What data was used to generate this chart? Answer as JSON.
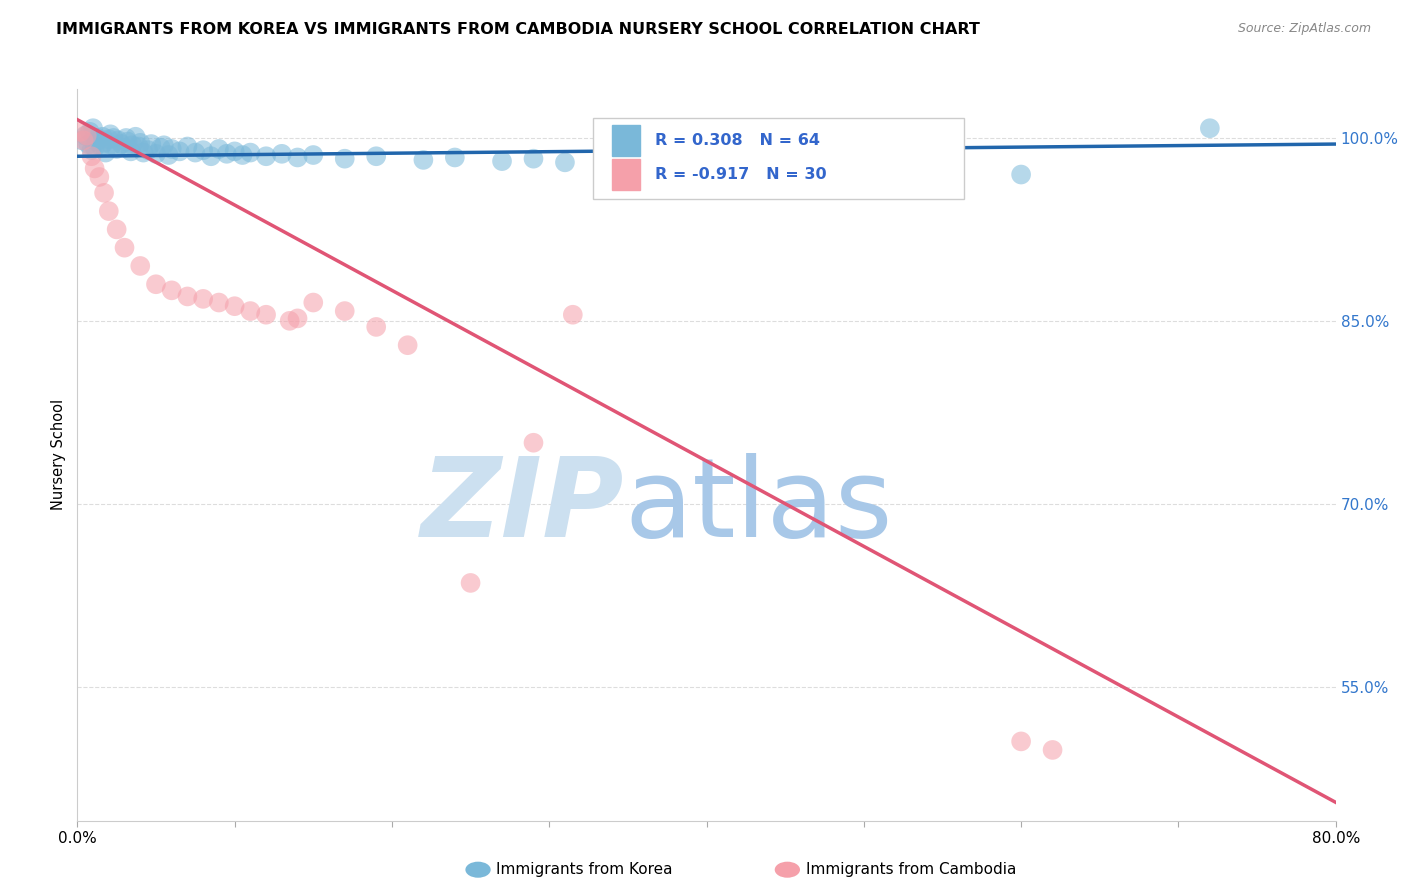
{
  "title": "IMMIGRANTS FROM KOREA VS IMMIGRANTS FROM CAMBODIA NURSERY SCHOOL CORRELATION CHART",
  "source": "Source: ZipAtlas.com",
  "ylabel": "Nursery School",
  "xlim": [
    0.0,
    80.0
  ],
  "ylim": [
    44.0,
    104.0
  ],
  "korea_R": 0.308,
  "korea_N": 64,
  "cambodia_R": -0.917,
  "cambodia_N": 30,
  "korea_color": "#7ab8d9",
  "cambodia_color": "#f5a0aa",
  "korea_line_color": "#2166ac",
  "cambodia_line_color": "#e05575",
  "watermark_zip_color": "#cce0f0",
  "watermark_atlas_color": "#a8c8e8",
  "grid_color": "#dddddd",
  "background_color": "#ffffff",
  "title_fontsize": 11.5,
  "legend_text_color": "#3366cc",
  "korea_scatter_x": [
    0.3,
    0.5,
    0.7,
    0.8,
    0.9,
    1.0,
    1.1,
    1.2,
    1.3,
    1.5,
    1.6,
    1.7,
    1.8,
    2.0,
    2.1,
    2.2,
    2.3,
    2.5,
    2.6,
    2.8,
    3.0,
    3.1,
    3.2,
    3.4,
    3.5,
    3.7,
    3.9,
    4.0,
    4.2,
    4.5,
    4.7,
    5.0,
    5.3,
    5.5,
    5.8,
    6.0,
    6.5,
    7.0,
    7.5,
    8.0,
    8.5,
    9.0,
    9.5,
    10.0,
    10.5,
    11.0,
    12.0,
    13.0,
    14.0,
    15.0,
    17.0,
    19.0,
    22.0,
    24.0,
    27.0,
    29.0,
    31.0,
    35.0,
    40.0,
    45.0,
    50.0,
    55.0,
    60.0,
    72.0
  ],
  "korea_scatter_y": [
    99.8,
    100.2,
    99.5,
    100.5,
    99.0,
    100.8,
    99.2,
    99.7,
    100.0,
    99.3,
    100.1,
    99.6,
    98.8,
    99.9,
    100.3,
    99.4,
    100.0,
    99.1,
    99.8,
    99.5,
    99.2,
    100.0,
    99.7,
    98.9,
    99.4,
    100.1,
    99.3,
    99.6,
    98.8,
    99.0,
    99.5,
    98.7,
    99.2,
    99.4,
    98.6,
    99.1,
    98.9,
    99.3,
    98.8,
    99.0,
    98.5,
    99.1,
    98.7,
    98.9,
    98.6,
    98.8,
    98.5,
    98.7,
    98.4,
    98.6,
    98.3,
    98.5,
    98.2,
    98.4,
    98.1,
    98.3,
    98.0,
    97.8,
    97.6,
    97.5,
    97.3,
    97.2,
    97.0,
    100.8
  ],
  "cambodia_scatter_x": [
    0.2,
    0.4,
    0.6,
    0.9,
    1.1,
    1.4,
    1.7,
    2.0,
    2.5,
    3.0,
    4.0,
    5.0,
    6.0,
    7.0,
    8.0,
    9.0,
    10.0,
    11.0,
    12.0,
    13.5,
    14.0,
    15.0,
    17.0,
    19.0,
    21.0,
    25.0,
    29.0,
    31.5,
    60.0,
    62.0
  ],
  "cambodia_scatter_y": [
    100.5,
    99.8,
    100.2,
    98.5,
    97.5,
    96.8,
    95.5,
    94.0,
    92.5,
    91.0,
    89.5,
    88.0,
    87.5,
    87.0,
    86.8,
    86.5,
    86.2,
    85.8,
    85.5,
    85.0,
    85.2,
    86.5,
    85.8,
    84.5,
    83.0,
    63.5,
    75.0,
    85.5,
    50.5,
    49.8
  ],
  "korea_trend_x": [
    0.0,
    80.0
  ],
  "korea_trend_y": [
    98.5,
    99.5
  ],
  "cambodia_trend_x": [
    0.0,
    80.0
  ],
  "cambodia_trend_y": [
    101.5,
    45.5
  ],
  "right_ytick_positions": [
    100.0,
    85.0,
    70.0,
    55.0
  ],
  "right_ytick_labels": [
    "100.0%",
    "85.0%",
    "70.0%",
    "55.0%"
  ],
  "xtick_positions": [
    0,
    10,
    20,
    30,
    40,
    50,
    60,
    70,
    80
  ],
  "xtick_labels": [
    "0.0%",
    "",
    "",
    "",
    "",
    "",
    "",
    "",
    "80.0%"
  ],
  "legend_korea_label": "R = 0.308   N = 64",
  "legend_cambodia_label": "R = -0.917   N = 30",
  "bottom_legend_korea": "Immigrants from Korea",
  "bottom_legend_cambodia": "Immigrants from Cambodia"
}
